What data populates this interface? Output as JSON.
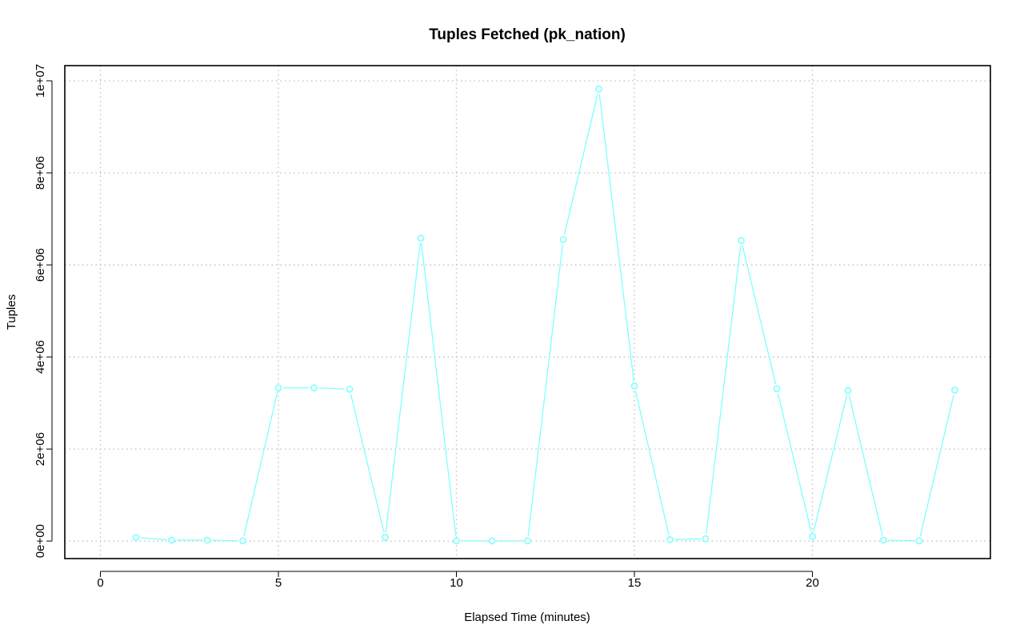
{
  "chart_data": {
    "type": "line",
    "title": "Tuples Fetched (pk_nation)",
    "xlabel": "Elapsed Time (minutes)",
    "ylabel": "Tuples",
    "xlim": [
      -1,
      25
    ],
    "ylim": [
      -380000,
      10330000
    ],
    "x_ticks": [
      0,
      5,
      10,
      15,
      20
    ],
    "x_tick_labels": [
      "0",
      "5",
      "10",
      "15",
      "20"
    ],
    "y_ticks": [
      0,
      2000000,
      4000000,
      6000000,
      8000000,
      10000000
    ],
    "y_tick_labels": [
      "0e+00",
      "2e+06",
      "4e+06",
      "6e+06",
      "8e+06",
      "1e+07"
    ],
    "grid": true,
    "grid_style": "dotted",
    "series": [
      {
        "color": "#7fffff",
        "x": [
          1,
          2,
          3,
          4,
          5,
          6,
          7,
          8,
          9,
          10,
          11,
          12,
          13,
          14,
          15,
          16,
          17,
          18,
          19,
          20,
          21,
          22,
          23,
          24
        ],
        "values": [
          80000,
          20000,
          20000,
          5000,
          3330000,
          3330000,
          3300000,
          80000,
          6580000,
          5000,
          5000,
          5000,
          6550000,
          9820000,
          3370000,
          30000,
          50000,
          6530000,
          3310000,
          100000,
          3270000,
          20000,
          5000,
          3280000
        ]
      }
    ]
  }
}
